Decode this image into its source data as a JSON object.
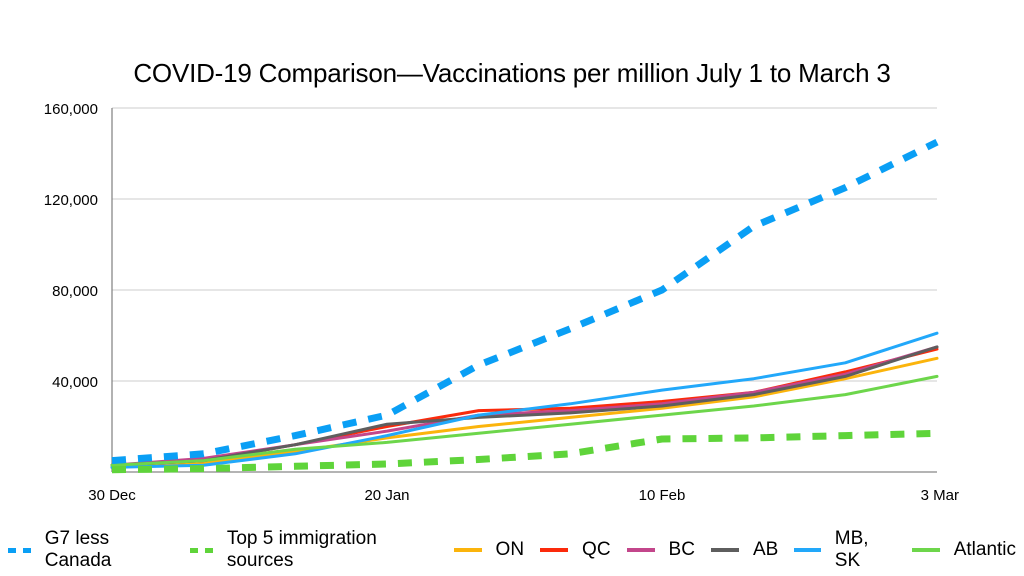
{
  "chart_data": {
    "type": "line",
    "title": "COVID-19 Comparison—Vaccinations per million July 1 to March 3",
    "xlabel": "",
    "ylabel": "",
    "x": [
      "30 Dec",
      "6 Jan",
      "13 Jan",
      "20 Jan",
      "27 Jan",
      "3 Feb",
      "10 Feb",
      "17 Feb",
      "24 Feb",
      "3 Mar"
    ],
    "x_tick_labels": [
      "30 Dec",
      "20 Jan",
      "10 Feb",
      "3 Mar"
    ],
    "x_tick_indices": [
      0,
      3,
      6,
      9
    ],
    "ylim": [
      0,
      160000
    ],
    "y_ticks": [
      40000,
      80000,
      120000,
      160000
    ],
    "y_tick_labels": [
      "40,000",
      "80,000",
      "120,000",
      "160,000"
    ],
    "grid": true,
    "legend_position": "bottom",
    "series": [
      {
        "name": "G7 less Canada",
        "color": "#0a9ff5",
        "style": "dashed",
        "values": [
          5000,
          8000,
          16000,
          25000,
          47000,
          63000,
          80000,
          108000,
          125000,
          145000
        ]
      },
      {
        "name": "Top 5 immigration sources",
        "color": "#5fd43a",
        "style": "dashed",
        "values": [
          1000,
          1500,
          2500,
          3500,
          5500,
          8000,
          14500,
          15000,
          16000,
          17000
        ]
      },
      {
        "name": "ON",
        "color": "#fbb40c",
        "style": "solid",
        "values": [
          2000,
          4000,
          9000,
          15000,
          20000,
          24000,
          28000,
          33000,
          41000,
          50000
        ]
      },
      {
        "name": "QC",
        "color": "#fb2a0c",
        "style": "solid",
        "values": [
          3000,
          5000,
          12000,
          20000,
          27000,
          28000,
          31000,
          35000,
          44000,
          54000
        ]
      },
      {
        "name": "BC",
        "color": "#c3468b",
        "style": "solid",
        "values": [
          3000,
          6000,
          12000,
          18000,
          25000,
          27000,
          30000,
          35000,
          43000,
          55000
        ]
      },
      {
        "name": "AB",
        "color": "#5e5e5e",
        "style": "solid",
        "values": [
          3000,
          5000,
          12000,
          21000,
          24000,
          26000,
          29000,
          34000,
          42000,
          55000
        ]
      },
      {
        "name": "MB, SK",
        "color": "#22a8fa",
        "style": "solid",
        "values": [
          2000,
          3000,
          8000,
          16000,
          25000,
          30000,
          36000,
          41000,
          48000,
          61000
        ]
      },
      {
        "name": "Atlantic",
        "color": "#6dd64b",
        "style": "solid",
        "values": [
          3000,
          5000,
          10000,
          13000,
          17000,
          21000,
          25000,
          29000,
          34000,
          42000
        ]
      }
    ]
  }
}
